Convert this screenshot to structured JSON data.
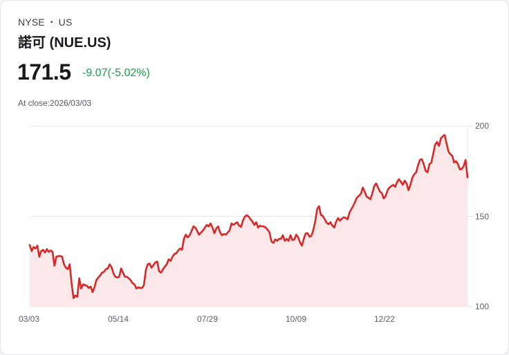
{
  "header": {
    "exchange": "NYSE",
    "region": "US",
    "separator": "•",
    "title": "諾可 (NUE.US)",
    "price": "171.5",
    "change": "-9.07(-5.02%)",
    "close_label": "At close:2026/03/03"
  },
  "colors": {
    "line": "#dc2626",
    "fill": "#fce8e8",
    "change_negative": "#16a34a",
    "grid": "#e2e4e7"
  },
  "chart_data": {
    "type": "area",
    "title": "諾可 (NUE.US)",
    "xlabel": "",
    "ylabel": "",
    "ylim": [
      100,
      200
    ],
    "y_ticks": [
      "200",
      "150",
      "100"
    ],
    "x_ticks": [
      "03/03",
      "05/14",
      "07/29",
      "10/09",
      "12/22"
    ],
    "grid": true,
    "y_axis_position": "right",
    "last_value": 171.5,
    "values": [
      134.1,
      130.7,
      133.0,
      132.2,
      133.7,
      127.6,
      130.7,
      131.4,
      129.9,
      131.8,
      130.3,
      131.1,
      130.3,
      122.6,
      127.6,
      128.0,
      128.0,
      127.6,
      123.4,
      121.5,
      120.7,
      123.4,
      113.0,
      104.6,
      106.1,
      105.4,
      115.7,
      110.0,
      112.3,
      111.9,
      111.5,
      110.3,
      111.1,
      108.0,
      110.7,
      114.6,
      116.1,
      117.2,
      118.8,
      119.2,
      120.7,
      121.1,
      123.4,
      121.8,
      118.4,
      116.5,
      116.1,
      116.5,
      121.1,
      118.8,
      116.5,
      116.5,
      115.7,
      114.6,
      113.0,
      112.3,
      110.0,
      110.7,
      110.3,
      110.3,
      111.9,
      120.3,
      123.4,
      123.8,
      121.5,
      123.0,
      124.5,
      124.9,
      119.5,
      118.8,
      120.7,
      122.2,
      123.4,
      126.1,
      125.3,
      127.6,
      129.1,
      129.5,
      131.1,
      132.2,
      131.4,
      137.5,
      139.8,
      138.3,
      139.5,
      141.8,
      144.4,
      143.7,
      141.8,
      139.8,
      141.0,
      142.1,
      143.7,
      145.2,
      144.4,
      146.0,
      143.7,
      140.6,
      143.3,
      144.4,
      141.0,
      139.5,
      140.2,
      139.8,
      141.0,
      142.1,
      146.0,
      145.2,
      146.0,
      146.7,
      144.8,
      144.1,
      147.5,
      149.8,
      150.6,
      149.8,
      148.3,
      147.1,
      145.2,
      146.7,
      143.7,
      144.8,
      144.4,
      144.4,
      143.7,
      142.5,
      141.0,
      136.0,
      135.2,
      137.2,
      136.4,
      137.5,
      137.5,
      139.5,
      136.4,
      137.5,
      136.4,
      139.5,
      136.8,
      137.2,
      139.8,
      138.3,
      135.6,
      133.7,
      137.5,
      140.6,
      140.6,
      138.7,
      139.1,
      142.5,
      147.1,
      154.0,
      155.6,
      150.6,
      150.2,
      148.3,
      146.4,
      145.6,
      146.7,
      144.8,
      143.7,
      147.1,
      149.0,
      147.5,
      148.7,
      149.4,
      149.0,
      148.3,
      152.1,
      154.0,
      155.9,
      158.2,
      160.5,
      161.3,
      162.5,
      165.9,
      163.6,
      160.9,
      160.2,
      159.4,
      162.8,
      166.7,
      168.2,
      165.9,
      163.6,
      162.8,
      159.8,
      161.3,
      164.4,
      165.9,
      166.7,
      167.4,
      166.3,
      169.0,
      170.5,
      169.0,
      167.4,
      169.7,
      168.2,
      164.4,
      167.4,
      171.3,
      173.2,
      174.3,
      178.2,
      181.2,
      181.6,
      178.9,
      175.1,
      174.3,
      178.9,
      179.7,
      184.7,
      189.7,
      191.2,
      188.9,
      193.1,
      194.3,
      195.0,
      190.4,
      185.8,
      184.3,
      183.5,
      179.7,
      180.5,
      178.9,
      175.9,
      176.2,
      177.8,
      181.2,
      171.5
    ]
  }
}
